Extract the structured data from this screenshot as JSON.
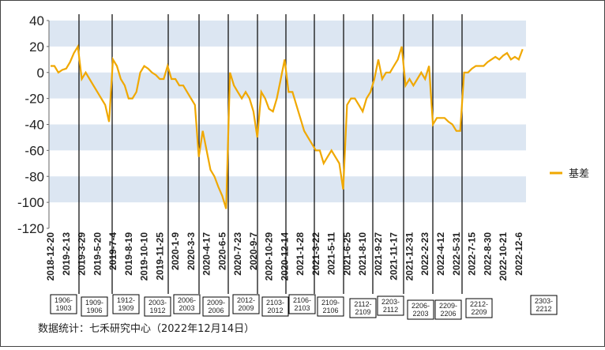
{
  "chart_data": {
    "type": "line",
    "categories": [
      "2018-12-20",
      null,
      null,
      null,
      "2019-2-13",
      null,
      null,
      null,
      "2019-3-29",
      null,
      null,
      null,
      "2019-5-20",
      null,
      null,
      null,
      "2019-7-4",
      null,
      null,
      null,
      "2019-8-19",
      null,
      null,
      null,
      "2019-10-10",
      null,
      null,
      null,
      "2019-11-25",
      null,
      null,
      null,
      "2020-1-9",
      null,
      null,
      null,
      "2020-3-3",
      null,
      null,
      null,
      "2020-4-17",
      null,
      null,
      null,
      "2020-6-5",
      null,
      null,
      null,
      "2020-7-23",
      null,
      null,
      null,
      "2020-9-7",
      null,
      null,
      null,
      "2020-10-29",
      null,
      null,
      null,
      "2020-12-14",
      null,
      null,
      null,
      "2021-1-28",
      null,
      null,
      null,
      "2021-3-22",
      null,
      null,
      null,
      "2021-5-11",
      null,
      null,
      null,
      "2021-6-25",
      null,
      null,
      null,
      "2021-8-10",
      null,
      null,
      null,
      "2021-9-27",
      null,
      null,
      null,
      "2021-11-17",
      null,
      null,
      null,
      "2021-12-31",
      null,
      null,
      null,
      "2022-2-23",
      null,
      null,
      null,
      "2022-4-12",
      null,
      null,
      null,
      "2022-5-31",
      null,
      null,
      null,
      "2022-7-15",
      null,
      null,
      null,
      "2022-8-30",
      null,
      null,
      null,
      "2022-10-21",
      null,
      null,
      null,
      "2022-12-6",
      null
    ],
    "series": [
      {
        "name": "基差",
        "color": "#f0a800",
        "values": [
          5,
          5,
          0,
          2,
          3,
          8,
          15,
          20,
          -5,
          0,
          -5,
          -10,
          -15,
          -20,
          -25,
          -38,
          10,
          5,
          -5,
          -10,
          -20,
          -20,
          -15,
          0,
          5,
          3,
          0,
          -2,
          -5,
          -5,
          5,
          -5,
          -5,
          -10,
          -10,
          -15,
          -20,
          -25,
          -65,
          -45,
          -60,
          -75,
          -80,
          -88,
          -95,
          -105,
          0,
          -10,
          -15,
          -20,
          -15,
          -20,
          -30,
          -50,
          -15,
          -20,
          -28,
          -30,
          -20,
          -5,
          10,
          -15,
          -15,
          -25,
          -35,
          -45,
          -50,
          -55,
          -60,
          -60,
          -70,
          -65,
          -60,
          -65,
          -70,
          -90,
          -25,
          -20,
          -20,
          -25,
          -30,
          -20,
          -15,
          -5,
          10,
          -5,
          0,
          0,
          5,
          10,
          20,
          -10,
          -5,
          -10,
          -5,
          0,
          -5,
          5,
          -40,
          -35,
          -35,
          -35,
          -38,
          -40,
          -45,
          -45,
          0,
          0,
          3,
          5,
          5,
          5,
          8,
          10,
          12,
          10,
          13,
          15,
          10,
          12,
          10,
          18
        ]
      }
    ],
    "ylim": [
      -120,
      40
    ],
    "yticks": [
      40,
      20,
      0,
      -20,
      -40,
      -60,
      -80,
      -100,
      -120
    ],
    "banded_grid": true,
    "band_color": "#dce6f2",
    "legend": "right",
    "contracts": [
      [
        "1906-",
        "1903"
      ],
      [
        "1909-",
        "1906"
      ],
      [
        "1912-",
        "1909"
      ],
      [
        "2003-",
        "1912"
      ],
      [
        "2006-",
        "2003"
      ],
      [
        "2009-",
        "2006"
      ],
      [
        "2012-",
        "2009"
      ],
      [
        "2103-",
        "2012"
      ],
      [
        "2106-",
        "2103"
      ],
      [
        "2109-",
        "2106"
      ],
      [
        "2112-",
        "2109"
      ],
      [
        "2203-",
        "2112"
      ],
      [
        "2206-",
        "2203"
      ],
      [
        "2209-",
        "2206"
      ],
      [
        "2212-",
        "2209"
      ],
      [
        "2303-",
        "2212"
      ]
    ],
    "source": "数据统计：七禾研究中心（2022年12月14日）"
  }
}
